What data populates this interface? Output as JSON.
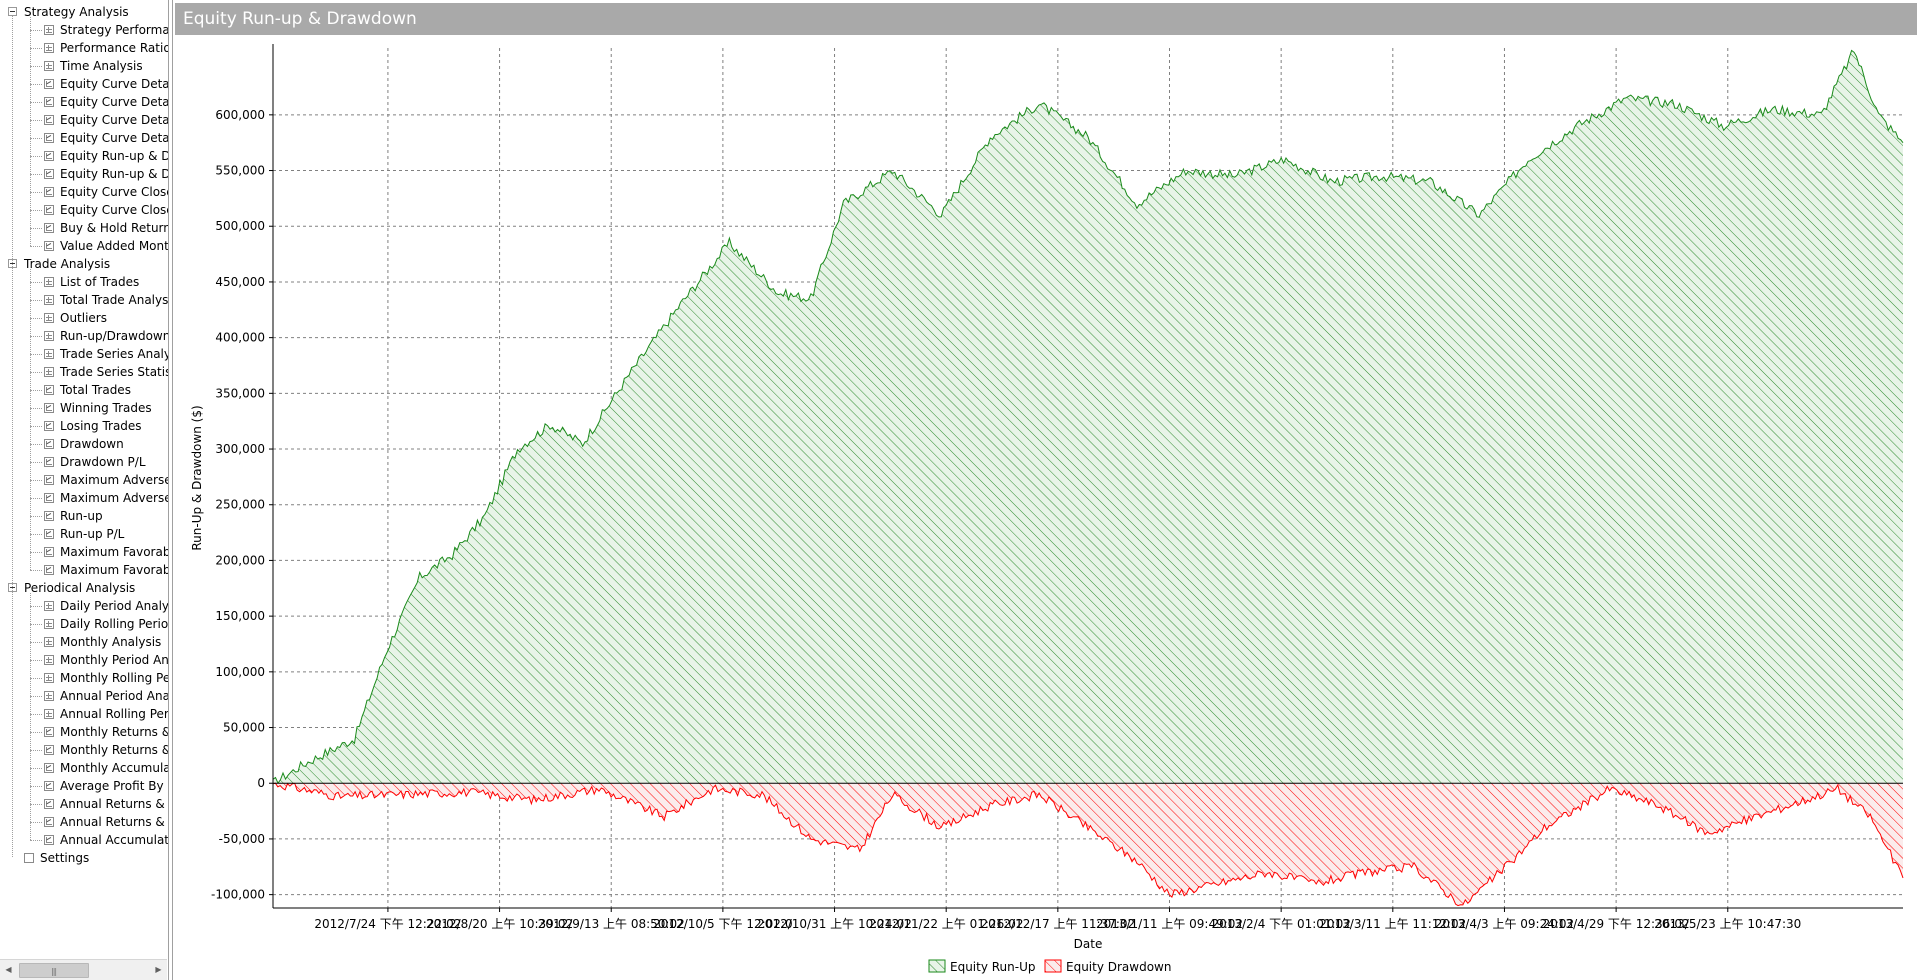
{
  "tree": {
    "groups": [
      {
        "label": "Strategy Analysis",
        "items": [
          {
            "label": "Strategy Performar",
            "icon": "grid"
          },
          {
            "label": "Performance Ratios",
            "icon": "grid"
          },
          {
            "label": "Time Analysis",
            "icon": "grid"
          },
          {
            "label": "Equity Curve Detail",
            "icon": "chart"
          },
          {
            "label": "Equity Curve Detail",
            "icon": "chart"
          },
          {
            "label": "Equity Curve Detail",
            "icon": "chart"
          },
          {
            "label": "Equity Curve Detail",
            "icon": "chart"
          },
          {
            "label": "Equity Run-up & Dr",
            "icon": "chart"
          },
          {
            "label": "Equity Run-up & Dr",
            "icon": "chart"
          },
          {
            "label": "Equity Curve Close",
            "icon": "chart"
          },
          {
            "label": "Equity Curve Close",
            "icon": "chart"
          },
          {
            "label": "Buy & Hold Return",
            "icon": "chart"
          },
          {
            "label": "Value Added Mont",
            "icon": "chart"
          }
        ]
      },
      {
        "label": "Trade Analysis",
        "items": [
          {
            "label": "List of Trades",
            "icon": "grid"
          },
          {
            "label": "Total Trade Analysi",
            "icon": "grid"
          },
          {
            "label": "Outliers",
            "icon": "grid"
          },
          {
            "label": "Run-up/Drawdown",
            "icon": "grid"
          },
          {
            "label": "Trade Series Analys",
            "icon": "grid"
          },
          {
            "label": "Trade Series Statist",
            "icon": "grid"
          },
          {
            "label": "Total Trades",
            "icon": "chart"
          },
          {
            "label": "Winning Trades",
            "icon": "chart"
          },
          {
            "label": "Losing Trades",
            "icon": "chart"
          },
          {
            "label": "Drawdown",
            "icon": "chart"
          },
          {
            "label": "Drawdown P/L",
            "icon": "chart"
          },
          {
            "label": "Maximum Adverse",
            "icon": "chart"
          },
          {
            "label": "Maximum Adverse",
            "icon": "chart"
          },
          {
            "label": "Run-up",
            "icon": "chart"
          },
          {
            "label": "Run-up P/L",
            "icon": "chart"
          },
          {
            "label": "Maximum Favorab",
            "icon": "chart"
          },
          {
            "label": "Maximum Favorab",
            "icon": "chart"
          }
        ]
      },
      {
        "label": "Periodical Analysis",
        "items": [
          {
            "label": "Daily Period Analys",
            "icon": "grid"
          },
          {
            "label": "Daily Rolling Perioc",
            "icon": "grid"
          },
          {
            "label": "Monthly Analysis",
            "icon": "grid"
          },
          {
            "label": "Monthly Period Ana",
            "icon": "grid"
          },
          {
            "label": "Monthly Rolling Pe",
            "icon": "grid"
          },
          {
            "label": "Annual Period Anal",
            "icon": "grid"
          },
          {
            "label": "Annual Rolling Peri",
            "icon": "grid"
          },
          {
            "label": "Monthly Returns &",
            "icon": "chart"
          },
          {
            "label": "Monthly Returns &",
            "icon": "chart"
          },
          {
            "label": "Monthly Accumulat",
            "icon": "chart"
          },
          {
            "label": "Average Profit By M",
            "icon": "chart"
          },
          {
            "label": "Annual Returns & D",
            "icon": "chart"
          },
          {
            "label": "Annual Returns & D",
            "icon": "chart"
          },
          {
            "label": "Annual Accumulativ",
            "icon": "chart"
          }
        ]
      }
    ],
    "settings_label": "Settings"
  },
  "panel": {
    "title": "Equity Run-up & Drawdown"
  },
  "colors": {
    "runup": "#1a8a1a",
    "runup_fill": "#2e8b2e",
    "drawdown": "#ff0000",
    "title_bar": "#a9a9a9",
    "grid": "#808080"
  },
  "chart_data": {
    "type": "area",
    "ylabel": "Run-Up & Drawdown ($)",
    "xlabel": "Date",
    "ylim": [
      -112000,
      660000
    ],
    "yticks": [
      -100000,
      -50000,
      0,
      50000,
      100000,
      150000,
      200000,
      250000,
      300000,
      350000,
      400000,
      450000,
      500000,
      550000,
      600000
    ],
    "ytick_labels": [
      "-100,000",
      "-50,000",
      "0",
      "50,000",
      "100,000",
      "150,000",
      "200,000",
      "250,000",
      "300,000",
      "350,000",
      "400,000",
      "450,000",
      "500,000",
      "550,000",
      "600,000"
    ],
    "xtick_labels": [
      "2012/7/24 下午 12:22:02",
      "2012/8/20 上午 10:39:02",
      "2012/9/13 上午 08:50:02",
      "2012/10/5 下午 12:02:0",
      "2012/10/31 上午 10:24:02",
      "2012/11/22 上午 01:26:02",
      "2012/12/17 上午 11:37:02",
      "2013/1/11 上午 09:49:02",
      "2013/2/4 下午 01:01:02",
      "2013/3/11 上午 11:12:02",
      "2013/4/3 上午 09:24:02",
      "2013/4/29 下午 12:36:02",
      "2013/5/23 上午 10:47:30"
    ],
    "grid": true,
    "legend_position": "bottom-center",
    "series": [
      {
        "name": "Equity Run-Up",
        "x": [
          0,
          0.02,
          0.05,
          0.07,
          0.09,
          0.11,
          0.13,
          0.15,
          0.17,
          0.19,
          0.22,
          0.25,
          0.28,
          0.31,
          0.33,
          0.35,
          0.38,
          0.41,
          0.44,
          0.47,
          0.5,
          0.53,
          0.56,
          0.59,
          0.62,
          0.65,
          0.68,
          0.71,
          0.74,
          0.77,
          0.8,
          0.83,
          0.86,
          0.89,
          0.92,
          0.95,
          0.97,
          0.985,
          1.0
        ],
        "values": [
          0,
          18000,
          40000,
          120000,
          185000,
          205000,
          240000,
          300000,
          322000,
          305000,
          370000,
          430000,
          485000,
          440000,
          435000,
          520000,
          550000,
          510000,
          580000,
          610000,
          580000,
          520000,
          550000,
          545000,
          560000,
          540000,
          545000,
          540000,
          510000,
          560000,
          590000,
          615000,
          610000,
          590000,
          605000,
          600000,
          658000,
          600000,
          575000
        ]
      },
      {
        "name": "Equity Drawdown",
        "x": [
          0,
          0.04,
          0.08,
          0.12,
          0.16,
          0.2,
          0.24,
          0.27,
          0.3,
          0.33,
          0.36,
          0.38,
          0.41,
          0.44,
          0.47,
          0.5,
          0.53,
          0.55,
          0.58,
          0.61,
          0.64,
          0.67,
          0.7,
          0.73,
          0.76,
          0.78,
          0.82,
          0.85,
          0.88,
          0.91,
          0.94,
          0.96,
          0.98,
          1.0
        ],
        "values": [
          0,
          -12000,
          -10000,
          -8000,
          -15000,
          -5000,
          -30000,
          -5000,
          -10000,
          -50000,
          -60000,
          -10000,
          -40000,
          -20000,
          -10000,
          -40000,
          -70000,
          -100000,
          -90000,
          -80000,
          -90000,
          -80000,
          -75000,
          -110000,
          -70000,
          -40000,
          -5000,
          -20000,
          -45000,
          -30000,
          -15000,
          -5000,
          -30000,
          -85000
        ]
      }
    ]
  }
}
